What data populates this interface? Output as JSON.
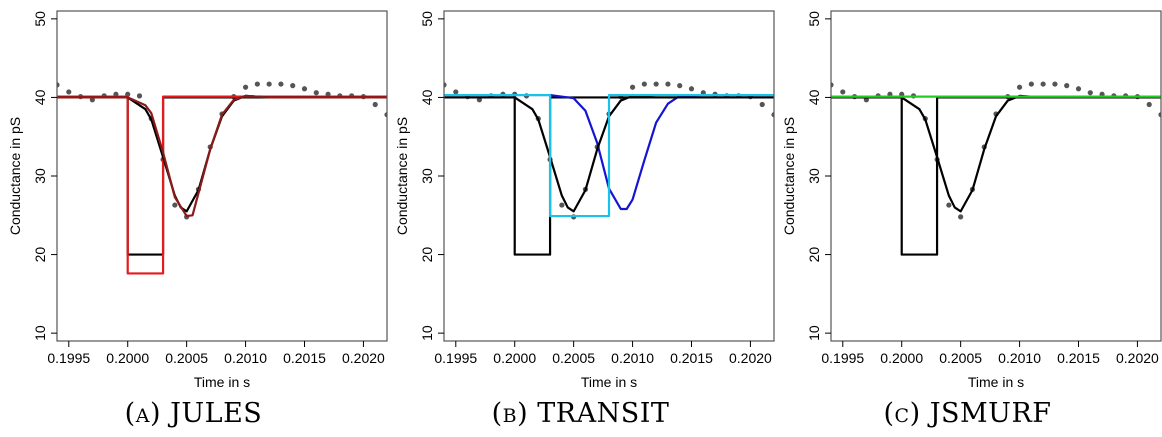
{
  "chart_data": [
    {
      "type": "line",
      "caption": {
        "prefix": "(",
        "letter": "a",
        "suffix": ")",
        "name": "JULES"
      },
      "xlabel": "Time in s",
      "ylabel": "Conductance in pS",
      "xlim": [
        0.1994,
        0.2022
      ],
      "ylim": [
        9,
        51
      ],
      "xticks": [
        0.1995,
        0.2,
        0.2005,
        0.201,
        0.2015,
        0.202
      ],
      "xtick_labels": [
        "0.1995",
        "0.2000",
        "0.2005",
        "0.2010",
        "0.2015",
        "0.2020"
      ],
      "yticks": [
        10,
        20,
        30,
        40,
        50
      ],
      "ytick_labels": [
        "10",
        "20",
        "30",
        "40",
        "50"
      ],
      "series": [
        {
          "kind": "step",
          "color": "#000000",
          "x": [
            0.1994,
            0.2,
            0.2,
            0.2003,
            0.2003,
            0.2022
          ],
          "y": [
            40,
            40,
            20,
            20,
            40,
            40
          ]
        },
        {
          "kind": "step",
          "color": "#e41a1c",
          "x": [
            0.1994,
            0.2,
            0.2,
            0.2003,
            0.2003,
            0.2022
          ],
          "y": [
            40.1,
            40.1,
            17.6,
            17.6,
            40.1,
            40.1
          ]
        },
        {
          "kind": "curve",
          "color": "#000000",
          "x": [
            0.1994,
            0.2,
            0.20015,
            0.2002,
            0.2003,
            0.2004,
            0.20045,
            0.2005,
            0.2006,
            0.2007,
            0.2008,
            0.2009,
            0.201,
            0.2012,
            0.2022
          ],
          "y": [
            40,
            40,
            38.5,
            37.2,
            32.4,
            27.5,
            26,
            25.5,
            28.2,
            33.4,
            37.6,
            39.6,
            40.2,
            40,
            40
          ]
        },
        {
          "kind": "curve",
          "color": "#8b1a1a",
          "x": [
            0.1994,
            0.2,
            0.20015,
            0.2002,
            0.2003,
            0.2004,
            0.2005,
            0.20055,
            0.2006,
            0.2007,
            0.2008,
            0.2009,
            0.201,
            0.2012,
            0.2022
          ],
          "y": [
            40,
            40,
            39,
            38,
            33,
            27.3,
            24.9,
            25,
            27.8,
            33.4,
            37.8,
            39.7,
            40.2,
            40,
            40
          ]
        }
      ],
      "points": {
        "color": "#555555",
        "x": [
          0.1994,
          0.1995,
          0.1996,
          0.1997,
          0.1998,
          0.1999,
          0.2,
          0.2001,
          0.2002,
          0.2003,
          0.2004,
          0.2005,
          0.2006,
          0.2007,
          0.2008,
          0.2009,
          0.201,
          0.2011,
          0.2012,
          0.2013,
          0.2014,
          0.2015,
          0.2016,
          0.2017,
          0.2018,
          0.2019,
          0.202,
          0.2021,
          0.2022
        ],
        "y": [
          41.6,
          40.7,
          40.1,
          39.7,
          40.2,
          40.4,
          40.4,
          40.2,
          37.3,
          32.1,
          26.3,
          24.8,
          28.3,
          33.7,
          37.9,
          40.1,
          41.3,
          41.7,
          41.7,
          41.7,
          41.5,
          41.1,
          40.6,
          40.4,
          40.2,
          40.2,
          40.1,
          39.1,
          37.8
        ]
      }
    },
    {
      "type": "line",
      "caption": {
        "prefix": "(",
        "letter": "b",
        "suffix": ")",
        "name": "TRANSIT"
      },
      "xlabel": "Time in s",
      "ylabel": "Conductance in pS",
      "xlim": [
        0.1994,
        0.2022
      ],
      "ylim": [
        9,
        51
      ],
      "xticks": [
        0.1995,
        0.2,
        0.2005,
        0.201,
        0.2015,
        0.202
      ],
      "xtick_labels": [
        "0.1995",
        "0.2000",
        "0.2005",
        "0.2010",
        "0.2015",
        "0.2020"
      ],
      "yticks": [
        10,
        20,
        30,
        40,
        50
      ],
      "ytick_labels": [
        "10",
        "20",
        "30",
        "40",
        "50"
      ],
      "series": [
        {
          "kind": "step",
          "color": "#000000",
          "x": [
            0.1994,
            0.2,
            0.2,
            0.2003,
            0.2003,
            0.2022
          ],
          "y": [
            40,
            40,
            20,
            20,
            40,
            40
          ]
        },
        {
          "kind": "curve",
          "color": "#1414d2",
          "x": [
            0.1994,
            0.2003,
            0.2005,
            0.2006,
            0.2007,
            0.2008,
            0.2009,
            0.20095,
            0.201,
            0.2011,
            0.2012,
            0.2013,
            0.2014,
            0.2016,
            0.2022
          ],
          "y": [
            40.3,
            40.3,
            39.9,
            38.3,
            34.2,
            28.4,
            25.8,
            25.8,
            27,
            32,
            36.8,
            39.2,
            40.2,
            40.3,
            40.3
          ]
        },
        {
          "kind": "curve",
          "color": "#000000",
          "x": [
            0.1994,
            0.2,
            0.20015,
            0.2002,
            0.2003,
            0.2004,
            0.20045,
            0.2005,
            0.2006,
            0.2007,
            0.2008,
            0.2009,
            0.201,
            0.2012,
            0.2022
          ],
          "y": [
            40,
            40,
            38.5,
            37.2,
            32.4,
            27.5,
            26,
            25.5,
            28.2,
            33.4,
            37.6,
            39.6,
            40.2,
            40,
            40
          ]
        },
        {
          "kind": "step",
          "color": "#17c4e8",
          "x": [
            0.1994,
            0.2003,
            0.2003,
            0.2008,
            0.2008,
            0.2022
          ],
          "y": [
            40.3,
            40.3,
            24.9,
            24.9,
            40.3,
            40.3
          ]
        }
      ],
      "points": {
        "color": "#555555",
        "x": [
          0.1994,
          0.1995,
          0.1996,
          0.1997,
          0.1998,
          0.1999,
          0.2,
          0.2001,
          0.2002,
          0.2003,
          0.2004,
          0.2005,
          0.2006,
          0.2007,
          0.2008,
          0.2009,
          0.201,
          0.2011,
          0.2012,
          0.2013,
          0.2014,
          0.2015,
          0.2016,
          0.2017,
          0.2018,
          0.2019,
          0.202,
          0.2021,
          0.2022
        ],
        "y": [
          41.6,
          40.7,
          40.1,
          39.7,
          40.2,
          40.4,
          40.4,
          40.2,
          37.3,
          32.1,
          26.3,
          24.8,
          28.3,
          33.7,
          37.9,
          40.1,
          41.3,
          41.7,
          41.7,
          41.7,
          41.5,
          41.1,
          40.6,
          40.4,
          40.2,
          40.2,
          40.1,
          39.1,
          37.8
        ]
      }
    },
    {
      "type": "line",
      "caption": {
        "prefix": "(",
        "letter": "c",
        "suffix": ")",
        "name": "JSMURF"
      },
      "xlabel": "Time in s",
      "ylabel": "Conductance in pS",
      "xlim": [
        0.1994,
        0.2022
      ],
      "ylim": [
        9,
        51
      ],
      "xticks": [
        0.1995,
        0.2,
        0.2005,
        0.201,
        0.2015,
        0.202
      ],
      "xtick_labels": [
        "0.1995",
        "0.2000",
        "0.2005",
        "0.2010",
        "0.2015",
        "0.2020"
      ],
      "yticks": [
        10,
        20,
        30,
        40,
        50
      ],
      "ytick_labels": [
        "10",
        "20",
        "30",
        "40",
        "50"
      ],
      "series": [
        {
          "kind": "step",
          "color": "#000000",
          "x": [
            0.1994,
            0.2,
            0.2,
            0.2003,
            0.2003,
            0.2022
          ],
          "y": [
            40,
            40,
            20,
            20,
            40,
            40
          ]
        },
        {
          "kind": "curve",
          "color": "#000000",
          "x": [
            0.1994,
            0.2,
            0.20015,
            0.2002,
            0.2003,
            0.2004,
            0.20045,
            0.2005,
            0.2006,
            0.2007,
            0.2008,
            0.2009,
            0.201,
            0.2012,
            0.2022
          ],
          "y": [
            40,
            40,
            38.5,
            37.2,
            32.4,
            27.5,
            26,
            25.5,
            28.2,
            33.4,
            37.6,
            39.6,
            40.2,
            40,
            40
          ]
        },
        {
          "kind": "step",
          "color": "#22cc22",
          "x": [
            0.1994,
            0.2022
          ],
          "y": [
            40.1,
            40.1
          ]
        }
      ],
      "points": {
        "color": "#555555",
        "x": [
          0.1994,
          0.1995,
          0.1996,
          0.1997,
          0.1998,
          0.1999,
          0.2,
          0.2001,
          0.2002,
          0.2003,
          0.2004,
          0.2005,
          0.2006,
          0.2007,
          0.2008,
          0.2009,
          0.201,
          0.2011,
          0.2012,
          0.2013,
          0.2014,
          0.2015,
          0.2016,
          0.2017,
          0.2018,
          0.2019,
          0.202,
          0.2021,
          0.2022
        ],
        "y": [
          41.6,
          40.7,
          40.1,
          39.7,
          40.2,
          40.4,
          40.4,
          40.2,
          37.3,
          32.1,
          26.3,
          24.8,
          28.3,
          33.7,
          37.9,
          40.1,
          41.3,
          41.7,
          41.7,
          41.7,
          41.5,
          41.1,
          40.6,
          40.4,
          40.2,
          40.2,
          40.1,
          39.1,
          37.8
        ]
      }
    }
  ]
}
